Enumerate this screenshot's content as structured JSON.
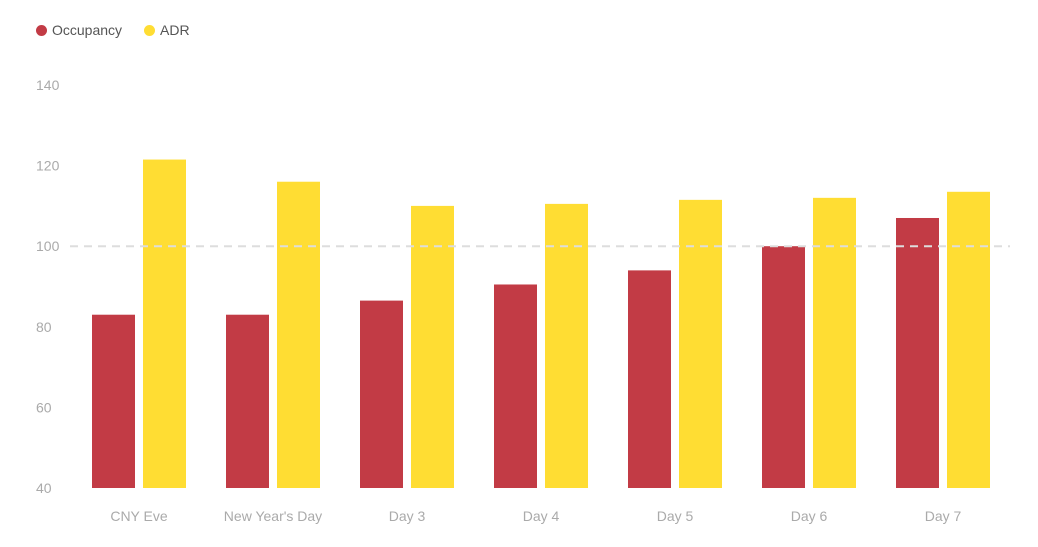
{
  "chart_data": {
    "type": "bar",
    "categories": [
      "CNY Eve",
      "New Year's Day",
      "Day 3",
      "Day 4",
      "Day 5",
      "Day 6",
      "Day 7"
    ],
    "series": [
      {
        "name": "Occupancy",
        "color": "#c23b45",
        "values": [
          83,
          83,
          86.5,
          90.5,
          94,
          100,
          107
        ]
      },
      {
        "name": "ADR",
        "color": "#ffdd33",
        "values": [
          121.5,
          116,
          110,
          110.5,
          111.5,
          112,
          113.5
        ]
      }
    ],
    "ylim": [
      40,
      140
    ],
    "yticks": [
      40,
      60,
      80,
      100,
      120,
      140
    ],
    "reference_line": 100,
    "legend_position": "top-left",
    "grid": false
  }
}
